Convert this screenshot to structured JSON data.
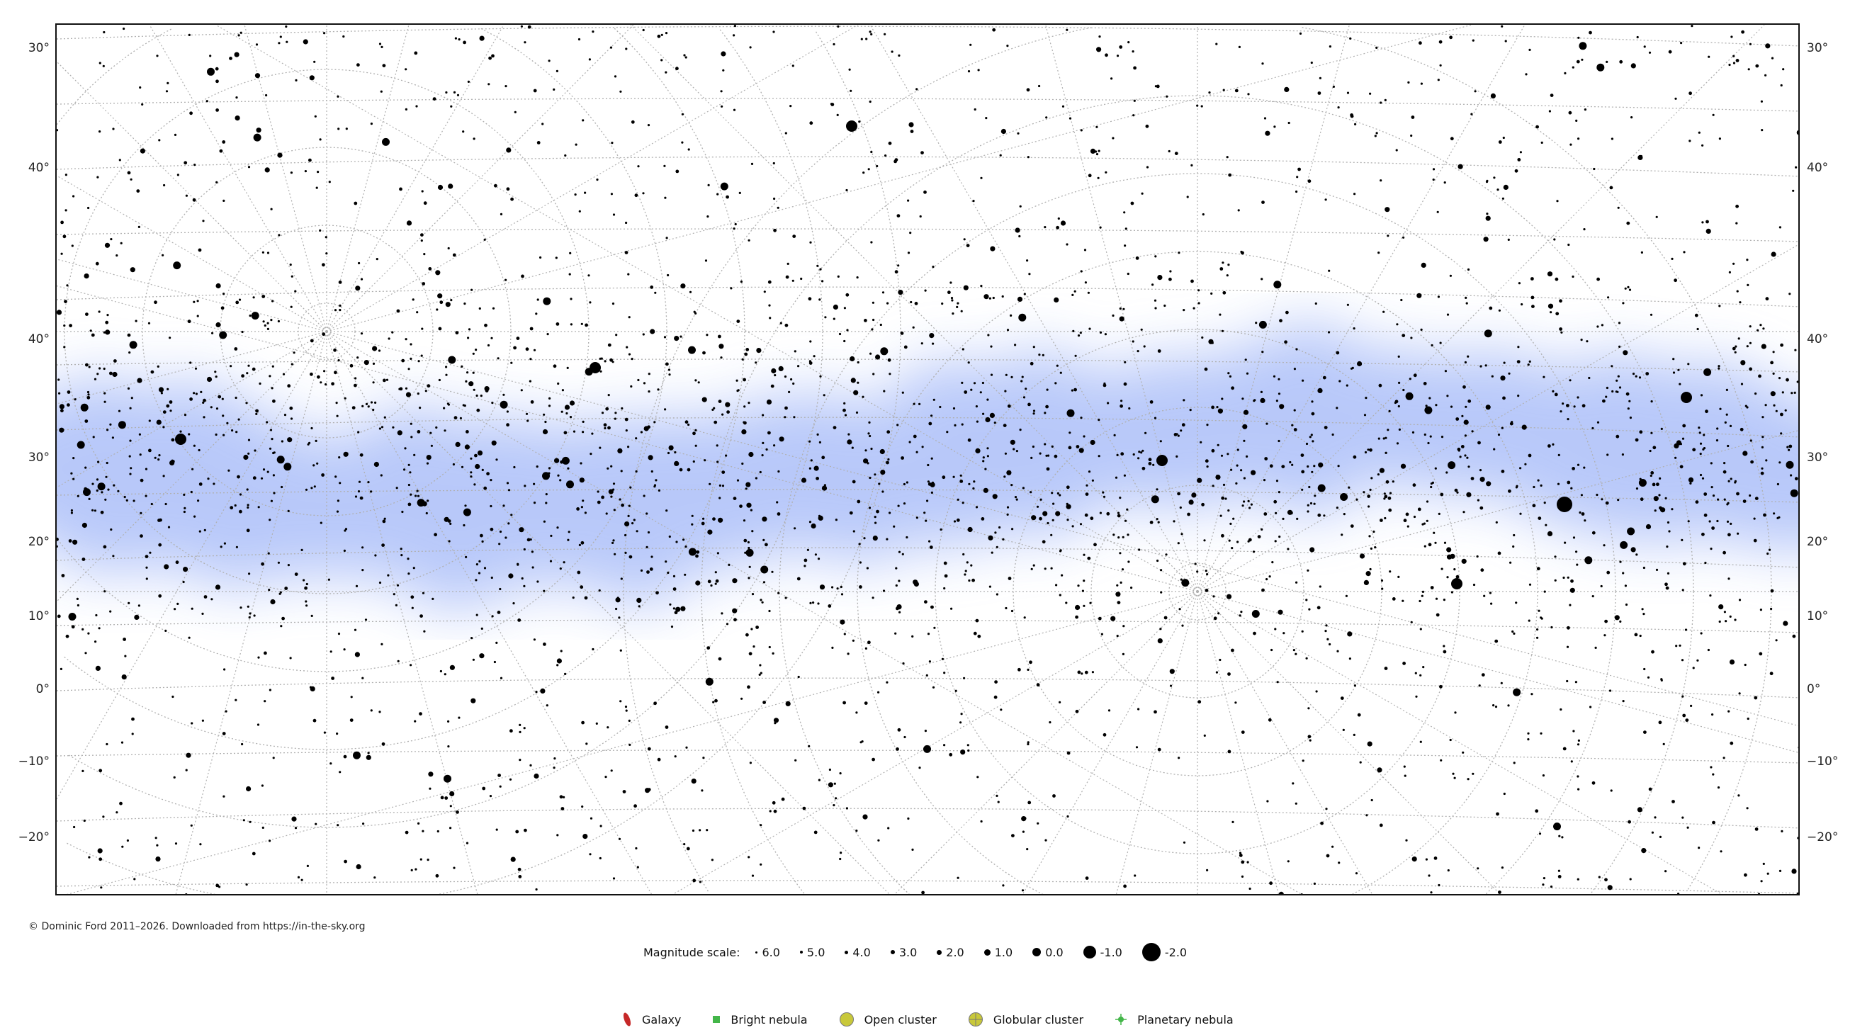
{
  "declination_labels_left": [
    "30°",
    "40°",
    "40°",
    "30°",
    "20°",
    "10°",
    "0°",
    "−10°",
    "−20°"
  ],
  "declination_labels_right": [
    "30°",
    "40°",
    "40°",
    "30°",
    "20°",
    "10°",
    "0°",
    "−10°",
    "−20°"
  ],
  "copyright": "© Dominic Ford 2011–2026. Downloaded from https://in-the-sky.org",
  "magnitude_scale": {
    "label": "Magnitude scale:",
    "items": [
      "6.0",
      "5.0",
      "4.0",
      "3.0",
      "2.0",
      "1.0",
      "0.0",
      "-1.0",
      "-2.0"
    ]
  },
  "legend": [
    {
      "label": "Galaxy",
      "icon": "galaxy-icon",
      "color": "#c62828"
    },
    {
      "label": "Bright nebula",
      "icon": "bright-nebula-icon",
      "color": "#43b649"
    },
    {
      "label": "Open cluster",
      "icon": "open-cluster-icon",
      "color": "#c8c83a"
    },
    {
      "label": "Globular cluster",
      "icon": "globular-cluster-icon",
      "color": "#c8c83a"
    },
    {
      "label": "Planetary nebula",
      "icon": "planetary-nebula-icon",
      "color": "#43b649"
    }
  ],
  "colors": {
    "milky_way": "#7f9cf5",
    "stars": "#000000",
    "grid": "#b0b0b0",
    "frame": "#111111"
  }
}
